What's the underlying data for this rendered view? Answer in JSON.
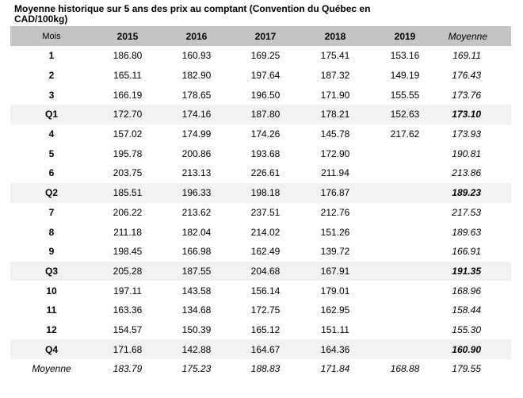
{
  "title": "Moyenne historique sur 5 ans des prix au comptant (Convention du Québec en CAD/100kg)",
  "table": {
    "headers": [
      "Mois",
      "2015",
      "2016",
      "2017",
      "2018",
      "2019",
      "Moyenne"
    ],
    "rows": [
      {
        "type": "month",
        "label": "1",
        "values": [
          "186.80",
          "160.93",
          "169.25",
          "175.41",
          "153.16",
          "169.11"
        ]
      },
      {
        "type": "month",
        "label": "2",
        "values": [
          "165.11",
          "182.90",
          "197.64",
          "187.32",
          "149.19",
          "176.43"
        ]
      },
      {
        "type": "month",
        "label": "3",
        "values": [
          "166.19",
          "178.65",
          "196.50",
          "171.90",
          "155.55",
          "173.76"
        ]
      },
      {
        "type": "quarter",
        "label": "Q1",
        "values": [
          "172.70",
          "174.16",
          "187.80",
          "178.21",
          "152.63",
          "173.10"
        ]
      },
      {
        "type": "month",
        "label": "4",
        "values": [
          "157.02",
          "174.99",
          "174.26",
          "145.78",
          "217.62",
          "173.93"
        ]
      },
      {
        "type": "month",
        "label": "5",
        "values": [
          "195.78",
          "200.86",
          "193.68",
          "172.90",
          "",
          "190.81"
        ]
      },
      {
        "type": "month",
        "label": "6",
        "values": [
          "203.75",
          "213.13",
          "226.61",
          "211.94",
          "",
          "213.86"
        ]
      },
      {
        "type": "quarter",
        "label": "Q2",
        "values": [
          "185.51",
          "196.33",
          "198.18",
          "176.87",
          "",
          "189.23"
        ]
      },
      {
        "type": "month",
        "label": "7",
        "values": [
          "206.22",
          "213.62",
          "237.51",
          "212.76",
          "",
          "217.53"
        ]
      },
      {
        "type": "month",
        "label": "8",
        "values": [
          "211.18",
          "182.04",
          "214.02",
          "151.26",
          "",
          "189.63"
        ]
      },
      {
        "type": "month",
        "label": "9",
        "values": [
          "198.45",
          "166.98",
          "162.49",
          "139.72",
          "",
          "166.91"
        ]
      },
      {
        "type": "quarter",
        "label": "Q3",
        "values": [
          "205.28",
          "187.55",
          "204.68",
          "167.91",
          "",
          "191.35"
        ]
      },
      {
        "type": "month",
        "label": "10",
        "values": [
          "197.11",
          "143.58",
          "156.14",
          "179.01",
          "",
          "168.96"
        ]
      },
      {
        "type": "month",
        "label": "11",
        "values": [
          "163.36",
          "134.68",
          "172.75",
          "162.95",
          "",
          "158.44"
        ]
      },
      {
        "type": "month",
        "label": "12",
        "values": [
          "154.57",
          "150.39",
          "165.12",
          "151.11",
          "",
          "155.30"
        ]
      },
      {
        "type": "quarter",
        "label": "Q4",
        "values": [
          "171.68",
          "142.88",
          "164.67",
          "164.36",
          "",
          "160.90"
        ]
      },
      {
        "type": "total",
        "label": "Moyenne",
        "values": [
          "183.79",
          "175.23",
          "188.83",
          "171.84",
          "168.88",
          "179.55"
        ]
      }
    ]
  },
  "colors": {
    "header_bg": "#c4c4c4",
    "quarter_bg": "#f2f2f2"
  }
}
